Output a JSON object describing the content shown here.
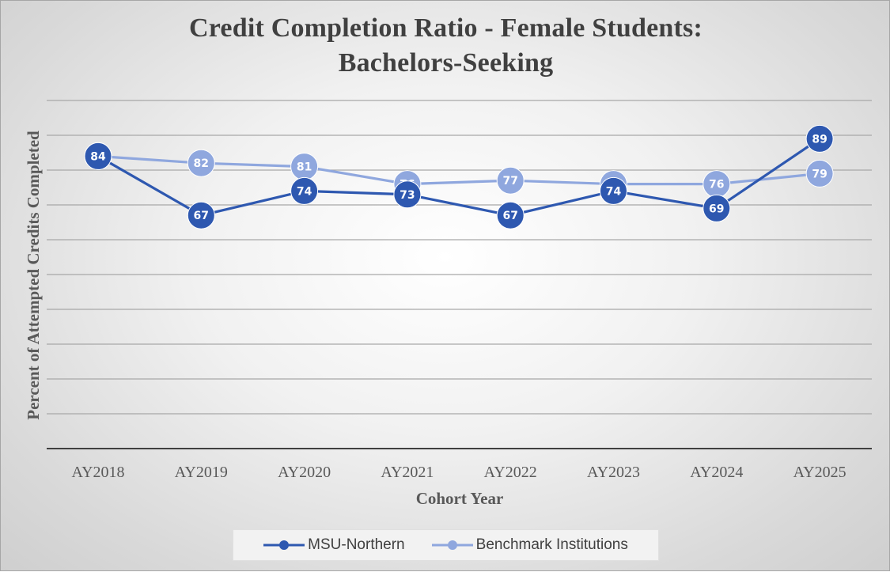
{
  "chart_data": {
    "type": "line",
    "title_lines": [
      "Credit Completion Ratio - Female Students:",
      "Bachelors-Seeking"
    ],
    "xlabel": "Cohort Year",
    "ylabel": "Percent of Attempted Credits Completed",
    "categories": [
      "AY2018",
      "AY2019",
      "AY2020",
      "AY2021",
      "AY2022",
      "AY2023",
      "AY2024",
      "AY2025"
    ],
    "ylim": [
      0,
      100
    ],
    "y_grid_step": 10,
    "grid": true,
    "y_tick_labels_shown": false,
    "legend_position": "bottom",
    "series": [
      {
        "name": "MSU-Northern",
        "color": "#2e58b0",
        "values": [
          84,
          67,
          74,
          73,
          67,
          74,
          69,
          89
        ]
      },
      {
        "name": "Benchmark Institutions",
        "color": "#8fa7de",
        "values": [
          84,
          82,
          81,
          76,
          77,
          76,
          76,
          79
        ]
      }
    ]
  }
}
